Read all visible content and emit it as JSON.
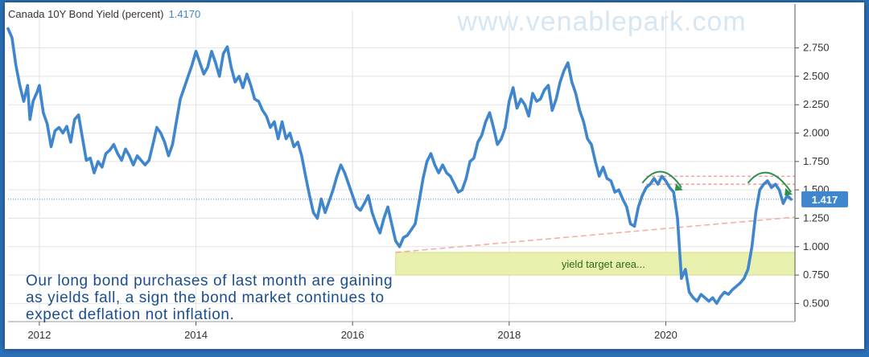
{
  "chart_data": {
    "type": "line",
    "title": "Canada 10Y Bond Yield (percent)",
    "last_value_label": "1.4170",
    "current_value_badge": "1.417",
    "watermark": "www.venablepark.com",
    "x_ticks": [
      "2012",
      "2014",
      "2016",
      "2018",
      "2020"
    ],
    "y_ticks": [
      "2.750",
      "2.500",
      "2.250",
      "2.000",
      "1.750",
      "1.500",
      "1.250",
      "1.000",
      "0.750",
      "0.500"
    ],
    "xlim": [
      2011.6,
      2021.65
    ],
    "ylim": [
      0.34,
      3.08
    ],
    "grid": true,
    "series": [
      {
        "color": "#3f86cc",
        "points": [
          [
            2011.6,
            2.92
          ],
          [
            2011.65,
            2.84
          ],
          [
            2011.7,
            2.6
          ],
          [
            2011.75,
            2.42
          ],
          [
            2011.8,
            2.28
          ],
          [
            2011.85,
            2.42
          ],
          [
            2011.88,
            2.12
          ],
          [
            2011.92,
            2.28
          ],
          [
            2011.97,
            2.36
          ],
          [
            2012.0,
            2.42
          ],
          [
            2012.05,
            2.18
          ],
          [
            2012.1,
            2.08
          ],
          [
            2012.15,
            1.88
          ],
          [
            2012.2,
            2.02
          ],
          [
            2012.25,
            2.05
          ],
          [
            2012.3,
            2.0
          ],
          [
            2012.35,
            2.06
          ],
          [
            2012.4,
            1.92
          ],
          [
            2012.45,
            2.12
          ],
          [
            2012.5,
            2.16
          ],
          [
            2012.55,
            1.96
          ],
          [
            2012.6,
            1.76
          ],
          [
            2012.65,
            1.78
          ],
          [
            2012.7,
            1.65
          ],
          [
            2012.75,
            1.75
          ],
          [
            2012.8,
            1.7
          ],
          [
            2012.85,
            1.82
          ],
          [
            2012.9,
            1.85
          ],
          [
            2012.95,
            1.9
          ],
          [
            2013.0,
            1.82
          ],
          [
            2013.05,
            1.76
          ],
          [
            2013.1,
            1.86
          ],
          [
            2013.15,
            1.8
          ],
          [
            2013.2,
            1.72
          ],
          [
            2013.25,
            1.8
          ],
          [
            2013.3,
            1.76
          ],
          [
            2013.35,
            1.72
          ],
          [
            2013.4,
            1.76
          ],
          [
            2013.45,
            1.9
          ],
          [
            2013.5,
            2.05
          ],
          [
            2013.55,
            2.0
          ],
          [
            2013.6,
            1.92
          ],
          [
            2013.65,
            1.8
          ],
          [
            2013.7,
            1.9
          ],
          [
            2013.75,
            2.1
          ],
          [
            2013.8,
            2.3
          ],
          [
            2013.85,
            2.4
          ],
          [
            2013.9,
            2.5
          ],
          [
            2013.95,
            2.6
          ],
          [
            2014.0,
            2.72
          ],
          [
            2014.05,
            2.62
          ],
          [
            2014.1,
            2.52
          ],
          [
            2014.15,
            2.58
          ],
          [
            2014.2,
            2.72
          ],
          [
            2014.25,
            2.62
          ],
          [
            2014.3,
            2.5
          ],
          [
            2014.35,
            2.7
          ],
          [
            2014.4,
            2.76
          ],
          [
            2014.45,
            2.58
          ],
          [
            2014.5,
            2.45
          ],
          [
            2014.55,
            2.5
          ],
          [
            2014.6,
            2.4
          ],
          [
            2014.65,
            2.52
          ],
          [
            2014.7,
            2.42
          ],
          [
            2014.75,
            2.3
          ],
          [
            2014.8,
            2.28
          ],
          [
            2014.85,
            2.2
          ],
          [
            2014.9,
            2.15
          ],
          [
            2014.95,
            2.05
          ],
          [
            2015.0,
            2.1
          ],
          [
            2015.05,
            1.95
          ],
          [
            2015.1,
            2.1
          ],
          [
            2015.15,
            1.95
          ],
          [
            2015.2,
            2.0
          ],
          [
            2015.25,
            1.88
          ],
          [
            2015.3,
            1.92
          ],
          [
            2015.35,
            1.8
          ],
          [
            2015.4,
            1.62
          ],
          [
            2015.45,
            1.45
          ],
          [
            2015.5,
            1.3
          ],
          [
            2015.55,
            1.25
          ],
          [
            2015.6,
            1.42
          ],
          [
            2015.65,
            1.3
          ],
          [
            2015.7,
            1.4
          ],
          [
            2015.75,
            1.5
          ],
          [
            2015.8,
            1.62
          ],
          [
            2015.85,
            1.72
          ],
          [
            2015.9,
            1.65
          ],
          [
            2015.95,
            1.55
          ],
          [
            2016.0,
            1.45
          ],
          [
            2016.05,
            1.35
          ],
          [
            2016.1,
            1.32
          ],
          [
            2016.15,
            1.38
          ],
          [
            2016.2,
            1.45
          ],
          [
            2016.25,
            1.3
          ],
          [
            2016.3,
            1.2
          ],
          [
            2016.35,
            1.12
          ],
          [
            2016.4,
            1.25
          ],
          [
            2016.45,
            1.35
          ],
          [
            2016.5,
            1.2
          ],
          [
            2016.55,
            1.05
          ],
          [
            2016.6,
            1.0
          ],
          [
            2016.65,
            1.08
          ],
          [
            2016.7,
            1.1
          ],
          [
            2016.75,
            1.15
          ],
          [
            2016.8,
            1.2
          ],
          [
            2016.85,
            1.4
          ],
          [
            2016.9,
            1.6
          ],
          [
            2016.95,
            1.75
          ],
          [
            2017.0,
            1.82
          ],
          [
            2017.05,
            1.72
          ],
          [
            2017.1,
            1.65
          ],
          [
            2017.15,
            1.72
          ],
          [
            2017.2,
            1.65
          ],
          [
            2017.25,
            1.62
          ],
          [
            2017.3,
            1.55
          ],
          [
            2017.35,
            1.48
          ],
          [
            2017.4,
            1.5
          ],
          [
            2017.45,
            1.6
          ],
          [
            2017.5,
            1.75
          ],
          [
            2017.55,
            1.78
          ],
          [
            2017.6,
            1.92
          ],
          [
            2017.65,
            1.98
          ],
          [
            2017.7,
            2.1
          ],
          [
            2017.75,
            2.18
          ],
          [
            2017.8,
            2.05
          ],
          [
            2017.85,
            1.9
          ],
          [
            2017.9,
            1.95
          ],
          [
            2017.95,
            2.05
          ],
          [
            2018.0,
            2.28
          ],
          [
            2018.05,
            2.4
          ],
          [
            2018.1,
            2.22
          ],
          [
            2018.15,
            2.3
          ],
          [
            2018.2,
            2.25
          ],
          [
            2018.25,
            2.15
          ],
          [
            2018.3,
            2.35
          ],
          [
            2018.35,
            2.28
          ],
          [
            2018.4,
            2.3
          ],
          [
            2018.45,
            2.38
          ],
          [
            2018.5,
            2.42
          ],
          [
            2018.55,
            2.2
          ],
          [
            2018.6,
            2.3
          ],
          [
            2018.65,
            2.45
          ],
          [
            2018.7,
            2.55
          ],
          [
            2018.75,
            2.62
          ],
          [
            2018.8,
            2.45
          ],
          [
            2018.85,
            2.35
          ],
          [
            2018.9,
            2.2
          ],
          [
            2018.95,
            2.1
          ],
          [
            2019.0,
            1.95
          ],
          [
            2019.05,
            1.9
          ],
          [
            2019.1,
            1.75
          ],
          [
            2019.15,
            1.62
          ],
          [
            2019.2,
            1.7
          ],
          [
            2019.25,
            1.6
          ],
          [
            2019.3,
            1.58
          ],
          [
            2019.35,
            1.48
          ],
          [
            2019.4,
            1.5
          ],
          [
            2019.45,
            1.42
          ],
          [
            2019.5,
            1.35
          ],
          [
            2019.55,
            1.2
          ],
          [
            2019.6,
            1.18
          ],
          [
            2019.65,
            1.35
          ],
          [
            2019.7,
            1.45
          ],
          [
            2019.75,
            1.52
          ],
          [
            2019.8,
            1.55
          ],
          [
            2019.85,
            1.6
          ],
          [
            2019.9,
            1.55
          ],
          [
            2019.95,
            1.62
          ],
          [
            2020.0,
            1.58
          ],
          [
            2020.05,
            1.52
          ],
          [
            2020.1,
            1.48
          ],
          [
            2020.15,
            1.25
          ],
          [
            2020.2,
            0.72
          ],
          [
            2020.25,
            0.8
          ],
          [
            2020.3,
            0.6
          ],
          [
            2020.35,
            0.55
          ],
          [
            2020.4,
            0.52
          ],
          [
            2020.45,
            0.58
          ],
          [
            2020.5,
            0.55
          ],
          [
            2020.55,
            0.52
          ],
          [
            2020.6,
            0.55
          ],
          [
            2020.65,
            0.5
          ],
          [
            2020.7,
            0.56
          ],
          [
            2020.75,
            0.6
          ],
          [
            2020.8,
            0.58
          ],
          [
            2020.85,
            0.62
          ],
          [
            2020.9,
            0.65
          ],
          [
            2020.95,
            0.68
          ],
          [
            2021.0,
            0.72
          ],
          [
            2021.05,
            0.8
          ],
          [
            2021.1,
            1.0
          ],
          [
            2021.15,
            1.3
          ],
          [
            2021.2,
            1.5
          ],
          [
            2021.25,
            1.55
          ],
          [
            2021.3,
            1.58
          ],
          [
            2021.35,
            1.52
          ],
          [
            2021.4,
            1.55
          ],
          [
            2021.45,
            1.5
          ],
          [
            2021.5,
            1.38
          ],
          [
            2021.55,
            1.45
          ],
          [
            2021.6,
            1.417
          ]
        ]
      }
    ],
    "annotations": {
      "callout_text": "Our long bond purchases of last month are gaining as yields fall, a sign the bond market continues to expect deflation not inflation.",
      "callout_lines": [
        "Our long bond purchases of last month are gaining",
        "as yields fall, a sign the bond market continues to",
        "expect deflation not inflation."
      ],
      "target_zone_label": "yield target area...",
      "target_zone_range": [
        0.75,
        0.95
      ],
      "resistance_lines": [
        1.62,
        1.55
      ],
      "trendline": [
        [
          2016.55,
          0.95
        ],
        [
          2021.65,
          1.26
        ]
      ],
      "arcs": [
        [
          [
            2019.7,
            1.56
          ],
          [
            2019.95,
            1.68
          ],
          [
            2020.2,
            1.52
          ]
        ],
        [
          [
            2021.05,
            1.56
          ],
          [
            2021.3,
            1.68
          ],
          [
            2021.6,
            1.48
          ]
        ]
      ],
      "colors": {
        "callout": "#1b4e8f",
        "zone_fill": "#e9efad",
        "zone_text": "#2e6b1e",
        "arc": "#2f8f4e",
        "resistance": "#e98a7e",
        "trend": "#f2b0a4",
        "badge": "#3f86cc",
        "frame": "#2b6fb6"
      }
    }
  }
}
